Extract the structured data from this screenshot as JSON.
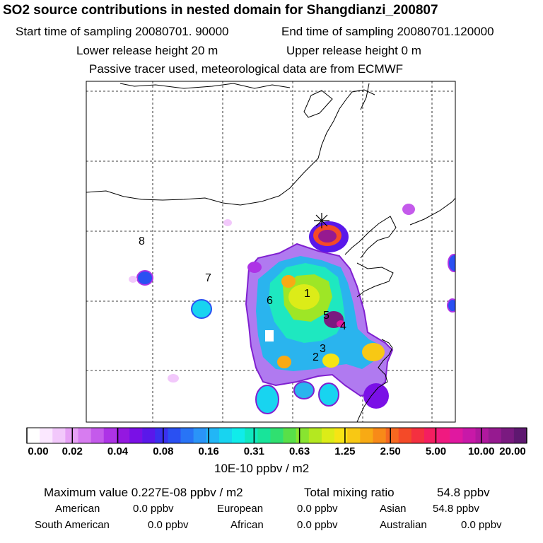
{
  "header": {
    "title": "SO2 source contributions in nested domain for Shangdianzi_200807",
    "start_label": "Start time of sampling 20080701. 90000",
    "end_label": "End time of sampling 20080701.120000",
    "lower_label": "Lower release height   20 m",
    "upper_label": "Upper release height    0 m",
    "tracer_note": "Passive tracer used, meteorological data are from ECMWF"
  },
  "chart_data": {
    "type": "heatmap",
    "title": "SO2 source contributions in nested domain for Shangdianzi_200807",
    "receptor_marker": "asterisk",
    "source_region_labels": [
      "1",
      "2",
      "3",
      "4",
      "5",
      "6",
      "7",
      "8"
    ],
    "colorbar": {
      "unit": "10E-10 ppbv / m2",
      "tick_labels": [
        "0.00",
        "0.02",
        "0.04",
        "0.08",
        "0.16",
        "0.31",
        "0.63",
        "1.25",
        "2.50",
        "5.00",
        "10.00",
        "20.00"
      ],
      "colors": [
        "#ffffff",
        "#fbe8ff",
        "#f2c8fb",
        "#e6a0f5",
        "#d77cf0",
        "#c45aeb",
        "#ad33e6",
        "#9418e0",
        "#7a10e6",
        "#5a18ea",
        "#3a30ee",
        "#2a50f2",
        "#2874f6",
        "#2a94f8",
        "#22b6f6",
        "#18d4f0",
        "#10ecea",
        "#10e8c0",
        "#18e49a",
        "#30e070",
        "#58e048",
        "#88e430",
        "#b4e820",
        "#dcec18",
        "#f6e414",
        "#f8c814",
        "#f8aa14",
        "#f88a18",
        "#f66820",
        "#f44a28",
        "#f43040",
        "#f41e60",
        "#f01a80",
        "#e018a0",
        "#c818a8",
        "#b0189e",
        "#961a90",
        "#7a1a80",
        "#5e1870"
      ]
    }
  },
  "stats": {
    "max_label": "Maximum value  0.227E-08 ppbv / m2",
    "total_label": "Total mixing ratio",
    "total_value": "54.8 ppbv",
    "american_label": "American",
    "american_value": "0.0 ppbv",
    "european_label": "European",
    "european_value": "0.0 ppbv",
    "asian_label": "Asian",
    "asian_value": "54.8 ppbv",
    "south_american_label": "South American",
    "south_american_value": "0.0 ppbv",
    "african_label": "African",
    "african_value": "0.0 ppbv",
    "australian_label": "Australian",
    "australian_value": "0.0 ppbv"
  }
}
